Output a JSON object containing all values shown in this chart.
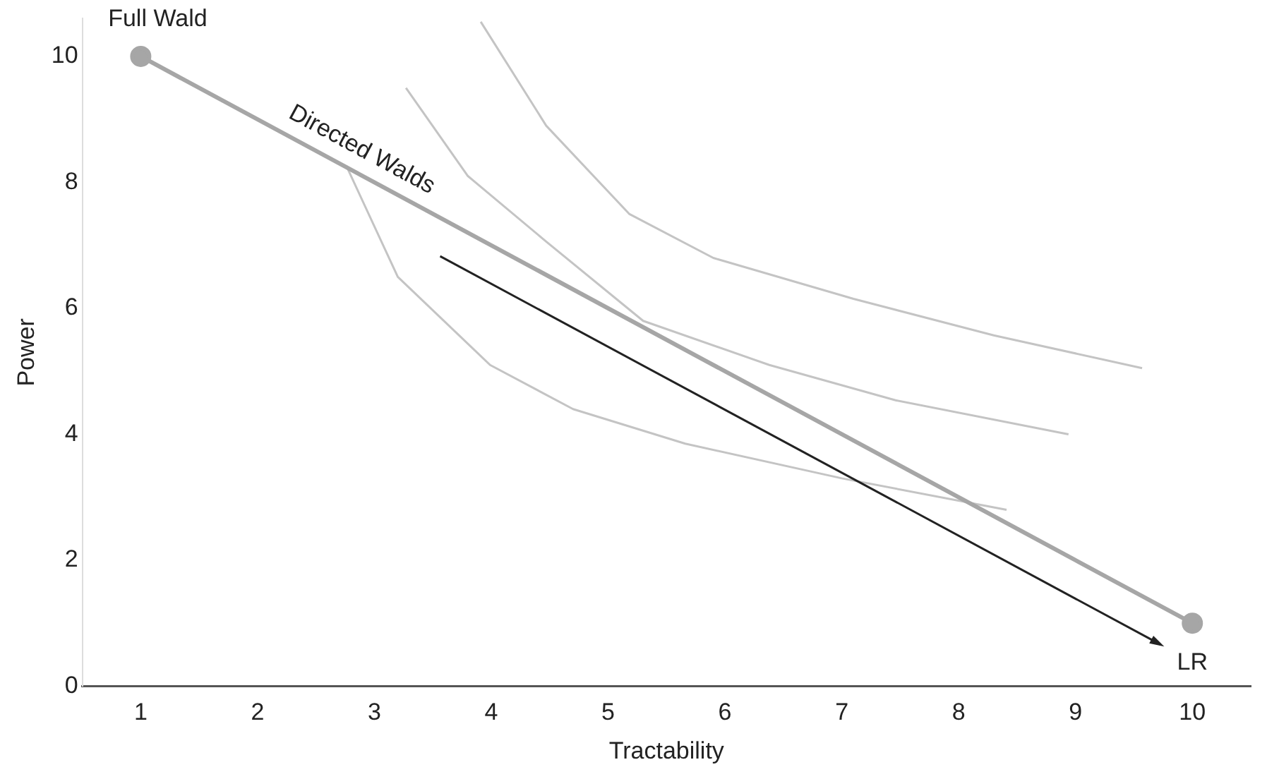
{
  "chart_data": {
    "type": "line",
    "xlabel": "Tractability",
    "ylabel": "Power",
    "xlim": [
      0.5,
      10.5
    ],
    "xticks": [
      1,
      2,
      3,
      4,
      5,
      6,
      7,
      8,
      9,
      10
    ],
    "ylim": [
      0,
      10.6
    ],
    "yticks": [
      0,
      2,
      4,
      6,
      8,
      10
    ],
    "grid": false,
    "legend": false,
    "series": [
      {
        "color": "#a6a6a6",
        "x": [
          1,
          10
        ],
        "values": [
          10,
          1
        ],
        "marker": "circle"
      },
      {
        "color": "#c4c4c4",
        "x": [
          2.76,
          3.2,
          3.99,
          4.7,
          5.66,
          7,
          8.41
        ],
        "values": [
          8.26,
          6.5,
          5.1,
          4.4,
          3.85,
          3.3,
          2.8
        ],
        "marker": "none"
      },
      {
        "color": "#c4c4c4",
        "x": [
          3.27,
          3.8,
          4.47,
          5.3,
          6.38,
          7.46,
          8.94
        ],
        "values": [
          9.5,
          8.1,
          7.06,
          5.8,
          5.1,
          4.54,
          4.0
        ],
        "marker": "none"
      },
      {
        "color": "#c4c4c4",
        "x": [
          3.91,
          4.47,
          5.18,
          5.9,
          7.1,
          8.3,
          9.57
        ],
        "values": [
          10.55,
          8.9,
          7.5,
          6.8,
          6.15,
          5.57,
          5.05
        ],
        "marker": "none"
      }
    ],
    "annotations": [
      {
        "text": "Full Wald",
        "x": 1,
        "y": 10
      },
      {
        "text": "LR",
        "x": 10,
        "y": 1
      },
      "Directed Walds"
    ]
  }
}
